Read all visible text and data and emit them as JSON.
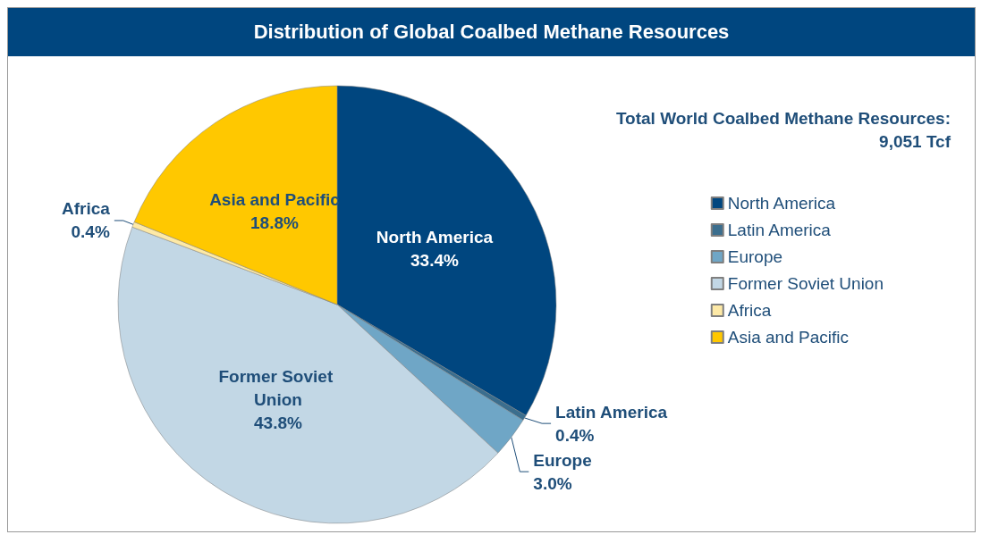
{
  "chart_data": {
    "type": "pie",
    "title": "Distribution of Global Coalbed Methane Resources",
    "categories": [
      "North America",
      "Latin America",
      "Europe",
      "Former Soviet Union",
      "Africa",
      "Asia and Pacific"
    ],
    "values": [
      33.4,
      0.4,
      3.0,
      43.8,
      0.4,
      18.8
    ],
    "colors": [
      "#00467f",
      "#3b6e8e",
      "#6fa6c6",
      "#c2d7e5",
      "#fde9a6",
      "#ffc800"
    ],
    "value_labels": [
      "33.4%",
      "0.4%",
      "3.0%",
      "43.8%",
      "0.4%",
      "18.8%"
    ],
    "legend": "right",
    "annotations": [
      "Total World Coalbed Methane Resources:",
      "9,051 Tcf"
    ]
  }
}
